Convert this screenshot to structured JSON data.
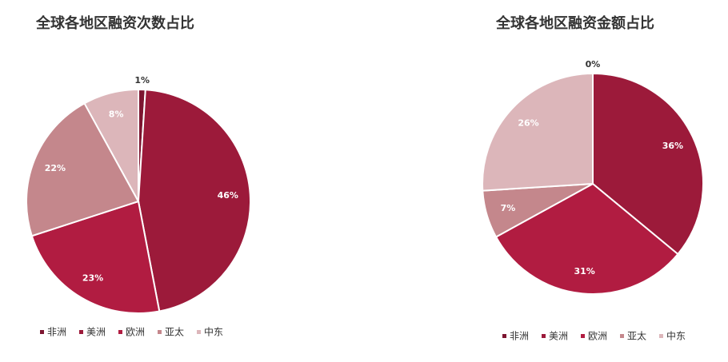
{
  "chart_data": [
    {
      "type": "pie",
      "title": "全球各地区融资次数占比",
      "categories": [
        "非洲",
        "美洲",
        "欧洲",
        "亚太",
        "中东"
      ],
      "values": [
        1,
        46,
        23,
        22,
        8
      ],
      "value_labels": [
        "1%",
        "46%",
        "23%",
        "22%",
        "8%"
      ],
      "colors": [
        "#7d1530",
        "#9c1a3a",
        "#b11c41",
        "#c4878c",
        "#dcb6ba"
      ]
    },
    {
      "type": "pie",
      "title": "全球各地区融资金额占比",
      "categories": [
        "非洲",
        "美洲",
        "欧洲",
        "亚太",
        "中东"
      ],
      "values": [
        0,
        36,
        31,
        7,
        26
      ],
      "value_labels": [
        "0%",
        "36%",
        "31%",
        "7%",
        "26%"
      ],
      "colors": [
        "#7d1530",
        "#9c1a3a",
        "#b11c41",
        "#c4878c",
        "#dcb6ba"
      ]
    }
  ]
}
